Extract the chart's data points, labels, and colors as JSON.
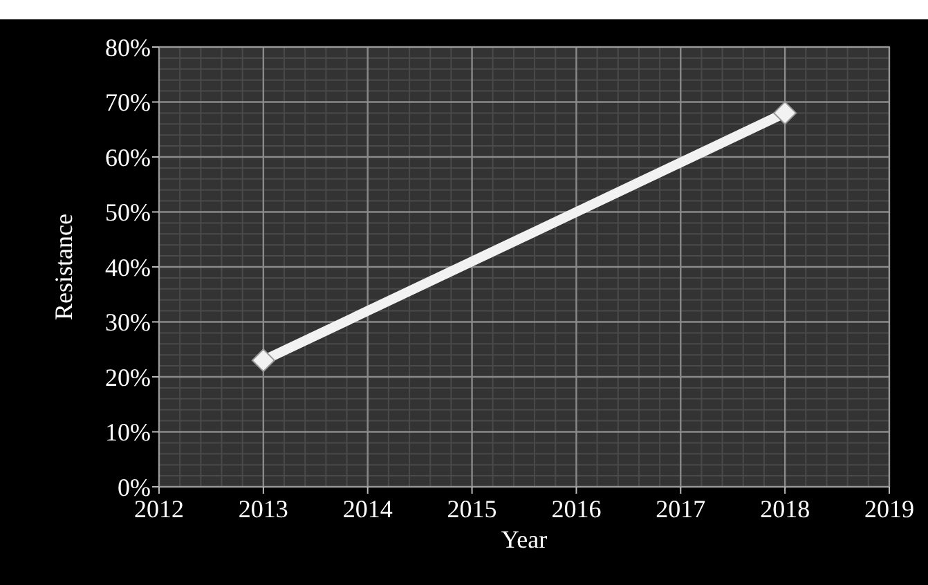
{
  "chart_data": {
    "type": "line",
    "xlabel": "Year",
    "ylabel": "Resistance",
    "x": [
      2013,
      2018
    ],
    "series": [
      {
        "color": "#f2f2f2",
        "values": [
          23,
          68
        ]
      }
    ],
    "xlim": [
      2012,
      2019
    ],
    "xticks": [
      2012,
      2013,
      2014,
      2015,
      2016,
      2017,
      2018,
      2019
    ],
    "ylim": [
      0,
      80
    ],
    "yticks": [
      {
        "value": 0,
        "label": "0%"
      },
      {
        "value": 10,
        "label": "10%"
      },
      {
        "value": 20,
        "label": "20%"
      },
      {
        "value": 30,
        "label": "30%"
      },
      {
        "value": 40,
        "label": "40%"
      },
      {
        "value": 50,
        "label": "50%"
      },
      {
        "value": 60,
        "label": "60%"
      },
      {
        "value": 70,
        "label": "70%"
      },
      {
        "value": 80,
        "label": "80%"
      }
    ],
    "grid": true,
    "marker": "diamond",
    "line_style": "solid"
  }
}
